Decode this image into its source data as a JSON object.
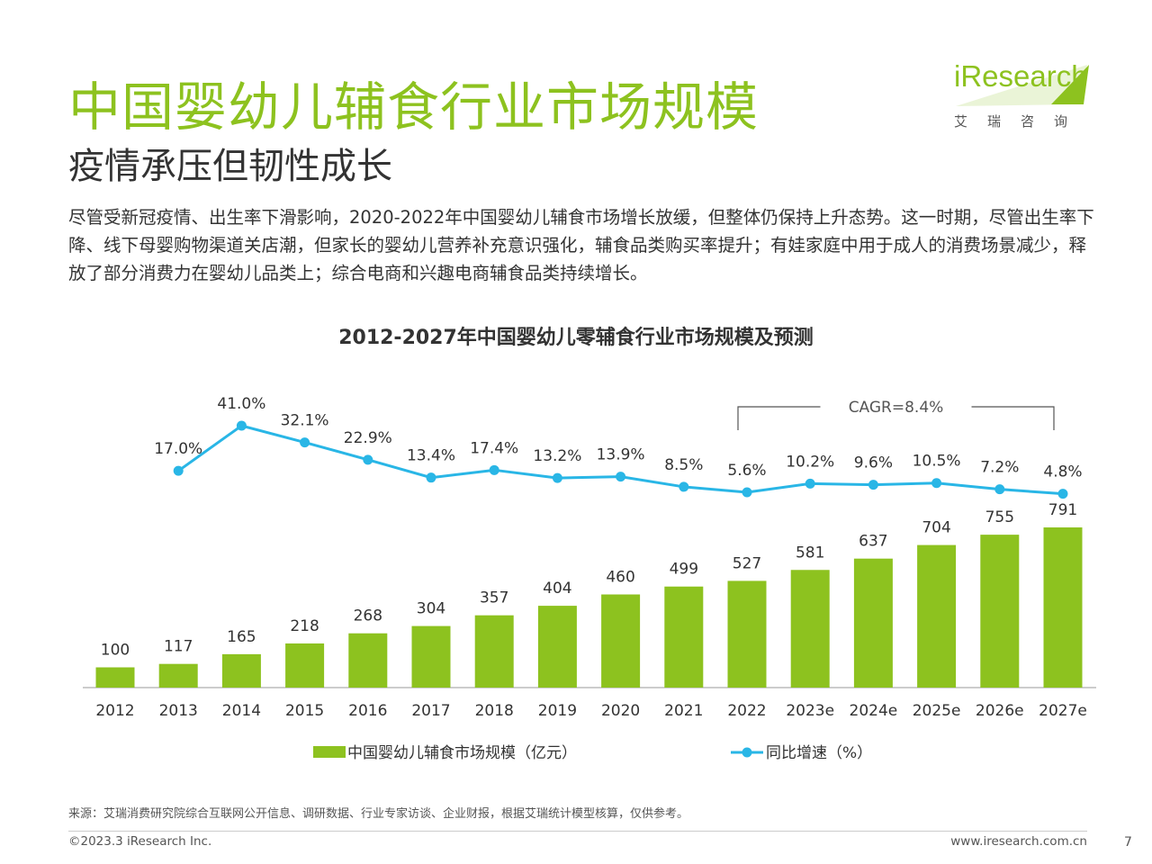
{
  "page": {
    "title": "中国婴幼儿辅食行业市场规模",
    "subtitle": "疫情承压但韧性成长",
    "body": "尽管受新冠疫情、出生率下滑影响，2020-2022年中国婴幼儿辅食市场增长放缓，但整体仍保持上升态势。这一时期，尽管出生率下降、线下母婴购物渠道关店潮，但家长的婴幼儿营养补充意识强化，辅食品类购买率提升；有娃家庭中用于成人的消费场景减少，释放了部分消费力在婴幼儿品类上；综合电商和兴趣电商辅食品类持续增长。"
  },
  "logo": {
    "wordmark": "iResearch",
    "cn": "艾瑞咨询"
  },
  "colors": {
    "brand_green": "#8dc21f",
    "line_blue": "#29b6e6",
    "text": "#333333"
  },
  "chart_data": {
    "type": "bar+line",
    "title": "2012-2027年中国婴幼儿零辅食行业市场规模及预测",
    "categories": [
      "2012",
      "2013",
      "2014",
      "2015",
      "2016",
      "2017",
      "2018",
      "2019",
      "2020",
      "2021",
      "2022",
      "2023e",
      "2024e",
      "2025e",
      "2026e",
      "2027e"
    ],
    "series": [
      {
        "name": "中国婴幼儿辅食市场规模（亿元）",
        "type": "bar",
        "color": "#8dc21f",
        "values": [
          100,
          117,
          165,
          218,
          268,
          304,
          357,
          404,
          460,
          499,
          527,
          581,
          637,
          704,
          755,
          791
        ],
        "labels": [
          "100",
          "117",
          "165",
          "218",
          "268",
          "304",
          "357",
          "404",
          "460",
          "499",
          "527",
          "581",
          "637",
          "704",
          "755",
          "791"
        ]
      },
      {
        "name": "同比增速（%）",
        "type": "line",
        "color": "#29b6e6",
        "values": [
          null,
          17.0,
          41.0,
          32.1,
          22.9,
          13.4,
          17.4,
          13.2,
          13.9,
          8.5,
          5.6,
          10.2,
          9.6,
          10.5,
          7.2,
          4.8
        ],
        "labels": [
          "",
          "17.0%",
          "41.0%",
          "32.1%",
          "22.9%",
          "13.4%",
          "17.4%",
          "13.2%",
          "13.9%",
          "8.5%",
          "5.6%",
          "10.2%",
          "9.6%",
          "10.5%",
          "7.2%",
          "4.8%"
        ]
      }
    ],
    "annotation": {
      "text": "CAGR=8.4%",
      "from": "2022",
      "to": "2027e"
    },
    "legend_position": "bottom",
    "grid": false
  },
  "footer": {
    "source": "来源：艾瑞消费研究院综合互联网公开信息、调研数据、行业专家访谈、企业财报，根据艾瑞统计模型核算，仅供参考。",
    "copyright": "©2023.3 iResearch Inc.",
    "website": "www.iresearch.com.cn",
    "page_number": "7"
  }
}
